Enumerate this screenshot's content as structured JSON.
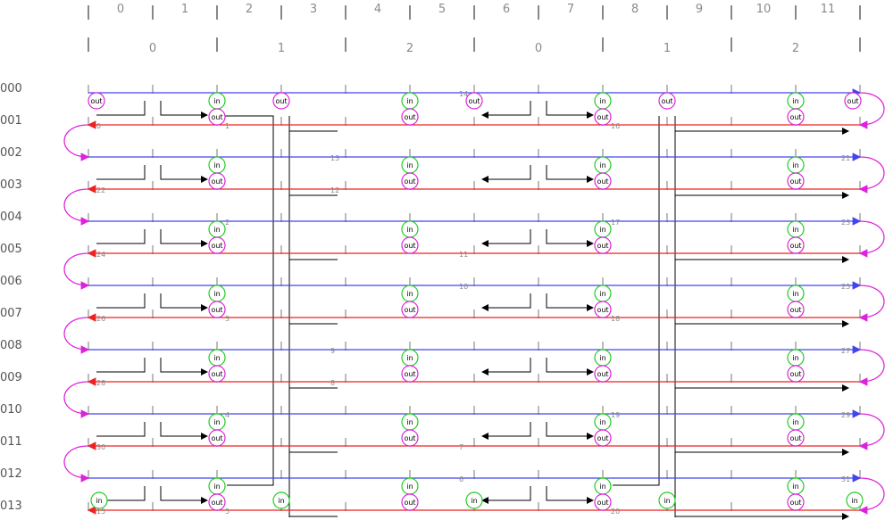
{
  "columns": [
    "0",
    "1",
    "2",
    "3",
    "4",
    "5",
    "6",
    "7",
    "8",
    "9",
    "10",
    "11"
  ],
  "groups": [
    "0",
    "1",
    "2",
    "0",
    "1",
    "2"
  ],
  "rows": [
    "000",
    "001",
    "002",
    "003",
    "004",
    "005",
    "006",
    "007",
    "008",
    "009",
    "010",
    "011",
    "012",
    "013"
  ],
  "port_in_label": "in",
  "port_out_label": "out",
  "numbers": [
    {
      "text": "0",
      "row": "001",
      "col": 0
    },
    {
      "text": "1",
      "row": "001",
      "col": 2
    },
    {
      "text": "16",
      "row": "001",
      "col": 8
    },
    {
      "text": "14",
      "row": "000",
      "col": 6
    },
    {
      "text": "13",
      "row": "002",
      "col": 4
    },
    {
      "text": "12",
      "row": "003",
      "col": 4
    },
    {
      "text": "21",
      "row": "002",
      "col": 11
    },
    {
      "text": "22",
      "row": "003",
      "col": 0
    },
    {
      "text": "2",
      "row": "004",
      "col": 2
    },
    {
      "text": "17",
      "row": "004",
      "col": 8
    },
    {
      "text": "23",
      "row": "004",
      "col": 11
    },
    {
      "text": "24",
      "row": "005",
      "col": 0
    },
    {
      "text": "11",
      "row": "005",
      "col": 6
    },
    {
      "text": "10",
      "row": "006",
      "col": 6
    },
    {
      "text": "25",
      "row": "006",
      "col": 11
    },
    {
      "text": "26",
      "row": "007",
      "col": 0
    },
    {
      "text": "3",
      "row": "007",
      "col": 2
    },
    {
      "text": "18",
      "row": "007",
      "col": 8
    },
    {
      "text": "9",
      "row": "008",
      "col": 4
    },
    {
      "text": "8",
      "row": "009",
      "col": 4
    },
    {
      "text": "27",
      "row": "008",
      "col": 11
    },
    {
      "text": "28",
      "row": "009",
      "col": 0
    },
    {
      "text": "4",
      "row": "010",
      "col": 2
    },
    {
      "text": "19",
      "row": "010",
      "col": 8
    },
    {
      "text": "29",
      "row": "010",
      "col": 11
    },
    {
      "text": "30",
      "row": "011",
      "col": 0
    },
    {
      "text": "7",
      "row": "011",
      "col": 6
    },
    {
      "text": "6",
      "row": "012",
      "col": 6
    },
    {
      "text": "31",
      "row": "012",
      "col": 11
    },
    {
      "text": "5",
      "row": "013",
      "col": 2
    },
    {
      "text": "20",
      "row": "013",
      "col": 8
    },
    {
      "text": "15",
      "row": "013",
      "col": 0
    }
  ],
  "colors": {
    "blue_bus": "#4444ee",
    "red_bus": "#ee2222",
    "magenta": "#dd22dd",
    "green": "#22cc22",
    "black": "#000000",
    "grey": "#bbbbbb"
  }
}
